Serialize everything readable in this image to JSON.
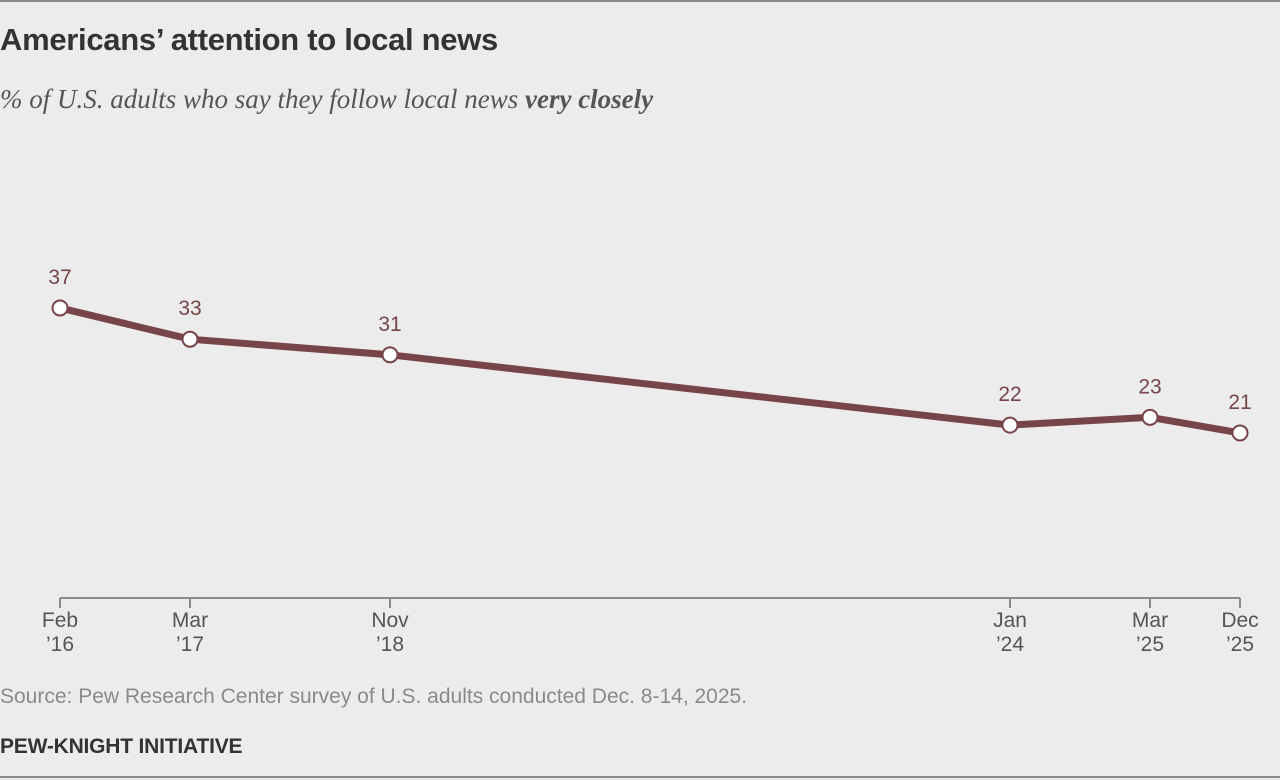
{
  "chart_data": {
    "type": "line",
    "title": "Americans’ attention to local news",
    "subtitle": "% of U.S. adults who say they follow local news",
    "subtitle_emphasis": "very closely",
    "x": [
      "2016-02",
      "2017-03",
      "2018-11",
      "2024-01",
      "2025-03",
      "2025-12"
    ],
    "values": [
      37,
      33,
      31,
      22,
      23,
      21
    ],
    "color": "#774549",
    "xlim": [
      "2016-02",
      "2025-12"
    ],
    "xticks": [
      {
        "value": "2016-02",
        "label": "Feb\n’16"
      },
      {
        "value": "2017-03",
        "label": "Mar\n’17"
      },
      {
        "value": "2018-11",
        "label": "Nov\n’18"
      },
      {
        "value": "2024-01",
        "label": "Jan\n’24"
      },
      {
        "value": "2025-03",
        "label": "Mar\n’25"
      },
      {
        "value": "2025-12",
        "label": "Dec\n’25"
      }
    ],
    "ylim": [
      0,
      40
    ],
    "source": "Source: Pew Research Center survey of U.S. adults conducted Dec. 8-14, 2025.",
    "credit": "PEW-KNIGHT INITIATIVE"
  }
}
